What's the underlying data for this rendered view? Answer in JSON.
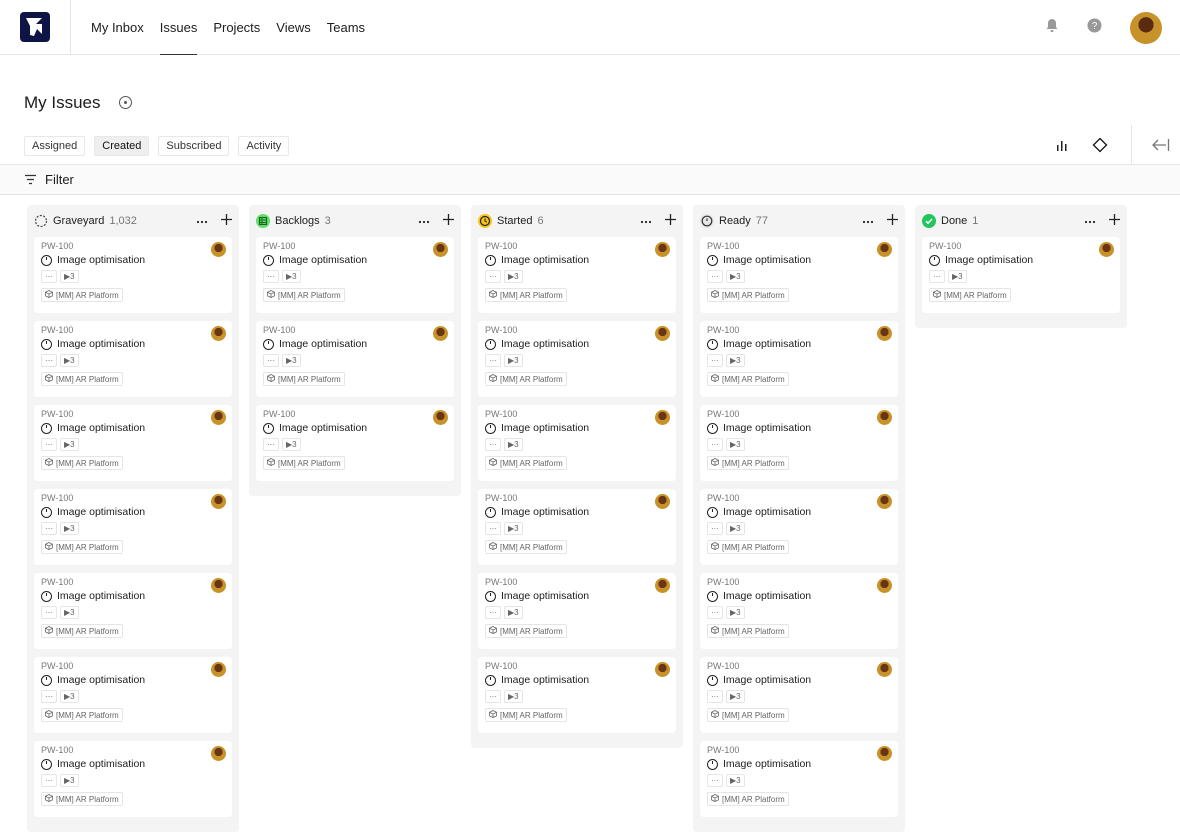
{
  "nav": {
    "items": [
      {
        "label": "My Inbox"
      },
      {
        "label": "Issues",
        "active": true
      },
      {
        "label": "Projects"
      },
      {
        "label": "Views"
      },
      {
        "label": "Teams"
      }
    ]
  },
  "page": {
    "title": "My Issues"
  },
  "tabs": [
    {
      "label": "Assigned"
    },
    {
      "label": "Created",
      "active": true
    },
    {
      "label": "Subscribed"
    },
    {
      "label": "Activity"
    }
  ],
  "filter": {
    "label": "Filter"
  },
  "colors": {
    "brand": "#0e1446",
    "backlog": "#5ee06b",
    "started": "#f5c518",
    "done": "#22c55e"
  },
  "columns": [
    {
      "name": "Graveyard",
      "count": "1,032",
      "status_icon": "dashed-circle",
      "visible_cards": 7
    },
    {
      "name": "Backlogs",
      "count": "3",
      "status_icon": "backlog-grid",
      "visible_cards": 3
    },
    {
      "name": "Started",
      "count": "6",
      "status_icon": "clock",
      "visible_cards": 6
    },
    {
      "name": "Ready",
      "count": "77",
      "status_icon": "ready-circle",
      "visible_cards": 7
    },
    {
      "name": "Done",
      "count": "1",
      "status_icon": "check-circle",
      "visible_cards": 1
    }
  ],
  "card": {
    "id": "PW-100",
    "title": "Image optimisation",
    "sub_count": "3",
    "project": "[MM] AR Platform"
  }
}
